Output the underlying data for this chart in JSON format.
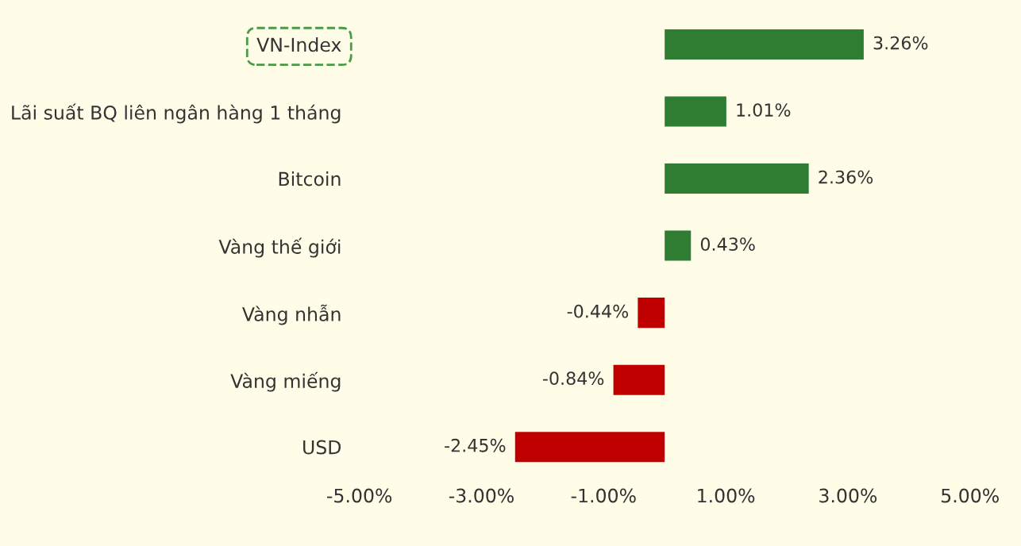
{
  "chart_data": {
    "type": "bar",
    "orientation": "horizontal",
    "categories": [
      "VN-Index",
      "Lãi suất BQ liên ngân hàng 1 tháng",
      "Bitcoin",
      "Vàng thế giới",
      "Vàng nhẫn",
      "Vàng miếng",
      "USD"
    ],
    "values": [
      3.26,
      1.01,
      2.36,
      0.43,
      -0.44,
      -0.84,
      -2.45
    ],
    "colors": [
      "#2e7d32",
      "#2e7d32",
      "#2e7d32",
      "#2e7d32",
      "#c00000",
      "#c00000",
      "#c00000"
    ],
    "value_labels": [
      "3.26%",
      "1.01%",
      "2.36%",
      "0.43%",
      "-0.44%",
      "-0.84%",
      "-2.45%"
    ],
    "xlim": [
      -5,
      5
    ],
    "xticks": [
      {
        "value": -5,
        "label": "-5.00%"
      },
      {
        "value": -3,
        "label": "-3.00%"
      },
      {
        "value": -1,
        "label": "-1.00%"
      },
      {
        "value": 1,
        "label": "1.00%"
      },
      {
        "value": 3,
        "label": "3.00%"
      },
      {
        "value": 5,
        "label": "5.00%"
      }
    ],
    "grid": false,
    "legend": false
  }
}
